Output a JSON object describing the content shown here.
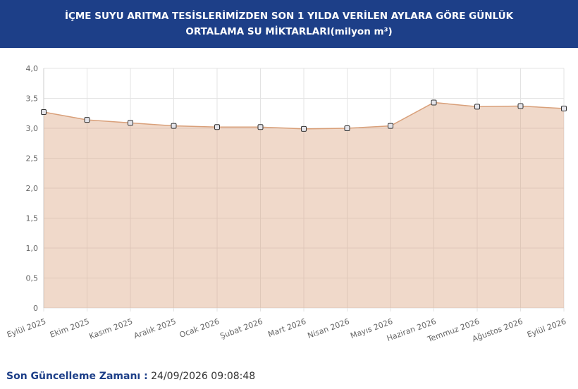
{
  "chart_data": {
    "type": "area",
    "title": "İÇME SUYU ARITMA TESİSLERİMİZDEN SON 1 YILDA VERİLEN AYLARA GÖRE GÜNLÜK ORTALAMA SU MİKTARLARI(milyon m³)",
    "categories": [
      "Eylül 2025",
      "Ekim 2025",
      "Kasım 2025",
      "Aralık 2025",
      "Ocak 2026",
      "Şubat 2026",
      "Mart 2026",
      "Nisan 2026",
      "Mayıs 2026",
      "Haziran 2026",
      "Temmuz 2026",
      "Ağustos 2026",
      "Eylül 2026"
    ],
    "values": [
      3.27,
      3.14,
      3.09,
      3.04,
      3.02,
      3.02,
      2.99,
      3.0,
      3.04,
      3.43,
      3.36,
      3.37,
      3.33
    ],
    "color": "#d9a07a",
    "ylim": [
      0,
      4
    ],
    "yticks": [
      0,
      {
        "value": 0.5,
        "label": "0,5"
      },
      {
        "value": 1,
        "label": "1,0"
      },
      {
        "value": 1.5,
        "label": "1,5"
      },
      {
        "value": 2,
        "label": "2,0"
      },
      {
        "value": 2.5,
        "label": "2,5"
      },
      {
        "value": 3,
        "label": "3,0"
      },
      {
        "value": 3.5,
        "label": "3,5"
      },
      {
        "value": 4,
        "label": "4,0"
      }
    ],
    "grid": true
  },
  "footer": {
    "label": "Son Güncelleme Zamanı :",
    "value": "24/09/2026 09:08:48"
  }
}
